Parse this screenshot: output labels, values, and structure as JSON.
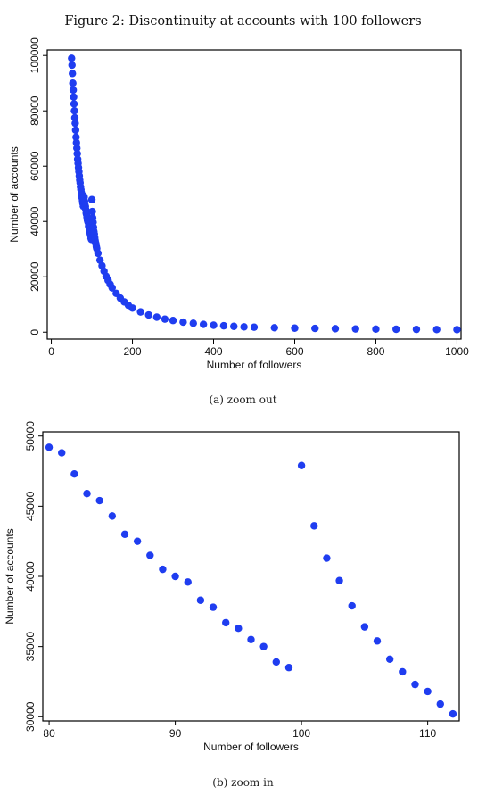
{
  "figure": {
    "title": "Figure 2: Discontinuity at accounts with 100 followers"
  },
  "colors": {
    "point": "#1f3df0",
    "axis": "#000000"
  },
  "chart_data": [
    {
      "type": "scatter",
      "caption": "(a) zoom out",
      "xlabel": "Number of followers",
      "ylabel": "Number of accounts",
      "xlim": [
        -10,
        1010
      ],
      "ylim": [
        -2500,
        102000
      ],
      "xticks": [
        0,
        200,
        400,
        600,
        800,
        1000
      ],
      "yticks": [
        0,
        20000,
        40000,
        60000,
        80000,
        100000
      ],
      "grid": false,
      "series": [
        {
          "x": [
            50,
            51,
            52,
            53,
            54,
            55,
            56,
            57,
            58,
            59,
            60,
            61,
            62,
            63,
            64,
            65,
            66,
            67,
            68,
            69,
            70,
            71,
            72,
            73,
            74,
            75,
            76,
            77,
            78,
            79,
            80,
            81,
            82,
            83,
            84,
            85,
            86,
            87,
            88,
            89,
            90,
            91,
            92,
            93,
            94,
            95,
            96,
            97,
            98,
            99,
            100,
            101,
            102,
            103,
            104,
            105,
            106,
            107,
            108,
            109,
            110,
            111,
            112,
            115,
            120,
            125,
            130,
            135,
            140,
            145,
            150,
            160,
            170,
            180,
            190,
            200,
            220,
            240,
            260,
            280,
            300,
            325,
            350,
            375,
            400,
            425,
            450,
            475,
            500,
            550,
            600,
            650,
            700,
            750,
            800,
            850,
            900,
            950,
            1000
          ],
          "y": [
            99000,
            96500,
            93500,
            90000,
            87500,
            85000,
            82500,
            80000,
            77500,
            75500,
            73000,
            70500,
            68500,
            66500,
            64500,
            62500,
            61000,
            59500,
            58000,
            56500,
            55000,
            54000,
            52500,
            51500,
            50500,
            49500,
            48500,
            47500,
            46500,
            45500,
            49200,
            48800,
            47300,
            45900,
            45400,
            44300,
            43000,
            42500,
            41500,
            40500,
            40000,
            39600,
            38300,
            37800,
            36700,
            36300,
            35500,
            35000,
            33900,
            33500,
            47900,
            43600,
            41300,
            39700,
            37900,
            36400,
            35400,
            34100,
            33200,
            32300,
            31800,
            30900,
            30200,
            28500,
            26000,
            24000,
            22000,
            20200,
            18700,
            17300,
            16000,
            14000,
            12300,
            10900,
            9700,
            8700,
            7300,
            6200,
            5400,
            4700,
            4200,
            3600,
            3200,
            2800,
            2500,
            2300,
            2100,
            1900,
            1800,
            1600,
            1450,
            1350,
            1250,
            1150,
            1100,
            1050,
            1000,
            950,
            900
          ]
        }
      ]
    },
    {
      "type": "scatter",
      "caption": "(b) zoom in",
      "xlabel": "Number of followers",
      "ylabel": "Number of accounts",
      "xlim": [
        79.5,
        112.5
      ],
      "ylim": [
        29700,
        50300
      ],
      "xticks": [
        80,
        90,
        100,
        110
      ],
      "yticks": [
        30000,
        35000,
        40000,
        45000,
        50000
      ],
      "grid": false,
      "series": [
        {
          "x": [
            80,
            81,
            82,
            83,
            84,
            85,
            86,
            87,
            88,
            89,
            90,
            91,
            92,
            93,
            94,
            95,
            96,
            97,
            98,
            99,
            100,
            101,
            102,
            103,
            104,
            105,
            106,
            107,
            108,
            109,
            110,
            111,
            112
          ],
          "y": [
            49200,
            48800,
            47300,
            45900,
            45400,
            44300,
            43000,
            42500,
            41500,
            40500,
            40000,
            39600,
            38300,
            37800,
            36700,
            36300,
            35500,
            35000,
            33900,
            33500,
            47900,
            43600,
            41300,
            39700,
            37900,
            36400,
            35400,
            34100,
            33200,
            32300,
            31800,
            30900,
            30200
          ]
        }
      ]
    }
  ]
}
